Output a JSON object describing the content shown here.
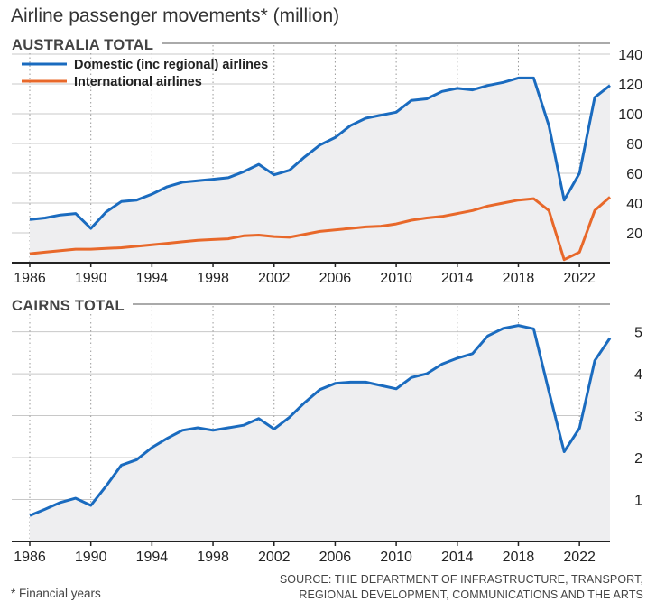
{
  "title": "Airline passenger movements* (million)",
  "footnote": "* Financial years",
  "source_line1": "SOURCE: THE DEPARTMENT OF INFRASTRUCTURE, TRANSPORT,",
  "source_line2": "REGIONAL DEVELOPMENT, COMMUNICATIONS AND THE ARTS",
  "colors": {
    "domestic": "#1a6bbf",
    "international": "#e8682a",
    "area": "#eeeef0",
    "grid": "#c8c8c8",
    "axis": "#222222"
  },
  "chart_data": [
    {
      "type": "line",
      "title": "AUSTRALIA TOTAL",
      "ylim": [
        0,
        140
      ],
      "yticks": [
        20,
        40,
        60,
        80,
        100,
        120,
        140
      ],
      "xticks": [
        1986,
        1990,
        1994,
        1998,
        2002,
        2006,
        2010,
        2014,
        2018,
        2022
      ],
      "xlim": [
        1986,
        2024
      ],
      "grid": true,
      "legend": "top-left",
      "x": [
        1986,
        1987,
        1988,
        1989,
        1990,
        1991,
        1992,
        1993,
        1994,
        1995,
        1996,
        1997,
        1998,
        1999,
        2000,
        2001,
        2002,
        2003,
        2004,
        2005,
        2006,
        2007,
        2008,
        2009,
        2010,
        2011,
        2012,
        2013,
        2014,
        2015,
        2016,
        2017,
        2018,
        2019,
        2020,
        2021,
        2022,
        2023,
        2024
      ],
      "series": [
        {
          "name": "Domestic (inc regional) airlines",
          "color": "#1a6bbf",
          "values": [
            29,
            30,
            32,
            33,
            23,
            34,
            41,
            42,
            46,
            51,
            54,
            55,
            56,
            57,
            61,
            66,
            59,
            62,
            71,
            79,
            84,
            92,
            97,
            99,
            101,
            109,
            110,
            115,
            117,
            116,
            119,
            121,
            124,
            124,
            92,
            42,
            60,
            111,
            119
          ]
        },
        {
          "name": "International airlines",
          "color": "#e8682a",
          "values": [
            6,
            7,
            8,
            9,
            9,
            9.5,
            10,
            11,
            12,
            13,
            14,
            15,
            15.5,
            16,
            18,
            18.5,
            17.5,
            17,
            19,
            21,
            22,
            23,
            24,
            24.5,
            26,
            28.5,
            30,
            31,
            33,
            35,
            38,
            40,
            42,
            43,
            35,
            2,
            7,
            35,
            44
          ]
        }
      ]
    },
    {
      "type": "line",
      "title": "CAIRNS TOTAL",
      "ylim": [
        0,
        5.4
      ],
      "yticks": [
        1,
        2,
        3,
        4,
        5
      ],
      "xticks": [
        1986,
        1990,
        1994,
        1998,
        2002,
        2006,
        2010,
        2014,
        2018,
        2022
      ],
      "xlim": [
        1986,
        2024
      ],
      "grid": true,
      "x": [
        1986,
        1987,
        1988,
        1989,
        1990,
        1991,
        1992,
        1993,
        1994,
        1995,
        1996,
        1997,
        1998,
        1999,
        2000,
        2001,
        2002,
        2003,
        2004,
        2005,
        2006,
        2007,
        2008,
        2009,
        2010,
        2011,
        2012,
        2013,
        2014,
        2015,
        2016,
        2017,
        2018,
        2019,
        2020,
        2021,
        2022,
        2023,
        2024
      ],
      "series": [
        {
          "color": "#1a6bbf",
          "values": [
            0.62,
            0.77,
            0.93,
            1.03,
            0.86,
            1.32,
            1.82,
            1.95,
            2.24,
            2.46,
            2.65,
            2.71,
            2.65,
            2.71,
            2.77,
            2.93,
            2.68,
            2.96,
            3.31,
            3.62,
            3.77,
            3.8,
            3.8,
            3.72,
            3.64,
            3.91,
            4.0,
            4.23,
            4.37,
            4.48,
            4.9,
            5.08,
            5.15,
            5.07,
            3.58,
            2.14,
            2.7,
            4.31,
            4.85
          ]
        }
      ]
    }
  ]
}
